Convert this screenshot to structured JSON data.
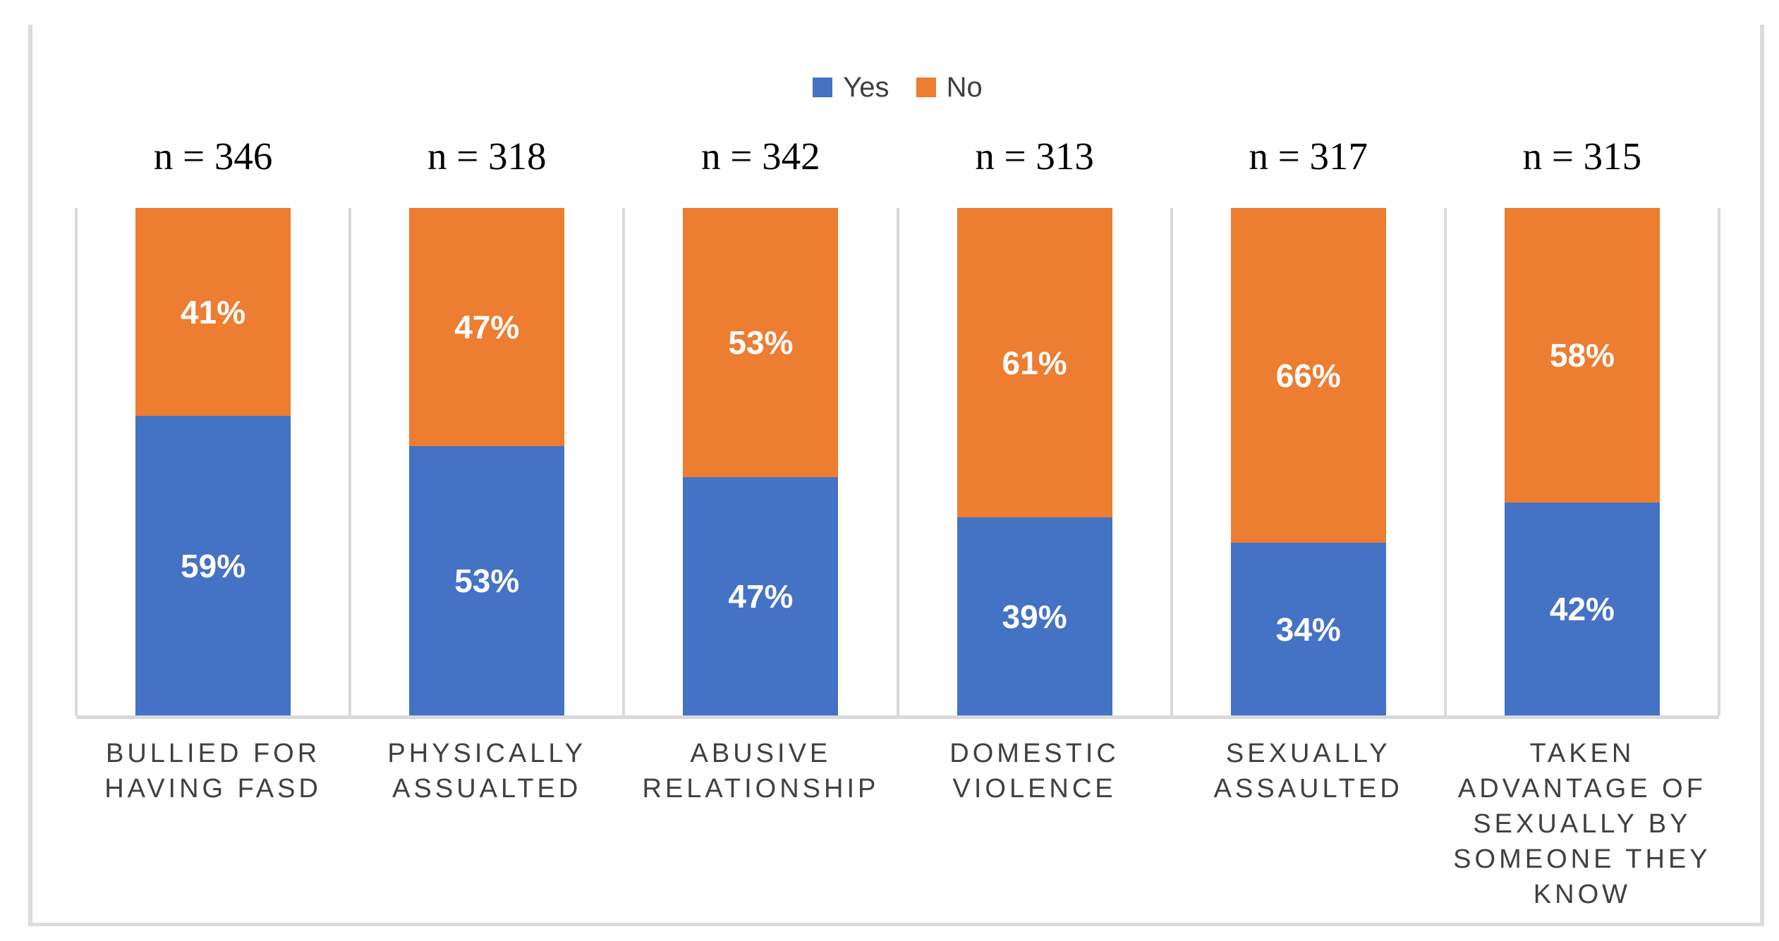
{
  "figure": {
    "background": "#FFFFFF",
    "border_color": "#DCDCDC"
  },
  "legend": {
    "items": [
      {
        "label": "Yes",
        "color": "#4472C4"
      },
      {
        "label": "No",
        "color": "#ED7D31"
      }
    ]
  },
  "chart_data": {
    "type": "bar",
    "subtype": "100%-stacked-column",
    "title": "",
    "legend_position": "top",
    "ylim": [
      0,
      100
    ],
    "gridlines": "vertical-category-dividers",
    "axis_color": "#D9D9D9",
    "value_label_color": "#FFFFFF",
    "category_label_color": "#404040",
    "sample_label_color": "#000000",
    "categories": [
      "BULLIED FOR HAVING FASD",
      "PHYSICALLY ASSUALTED",
      "ABUSIVE RELATIONSHIP",
      "DOMESTIC VIOLENCE",
      "SEXUALLY ASSAULTED",
      "TAKEN ADVANTAGE OF SEXUALLY BY SOMEONE THEY KNOW"
    ],
    "sample_sizes": [
      "n = 346",
      "n = 318",
      "n = 342",
      "n = 313",
      "n = 317",
      "n = 315"
    ],
    "series": [
      {
        "name": "Yes",
        "color": "#4472C4",
        "values": [
          59,
          53,
          47,
          39,
          34,
          42
        ],
        "labels": [
          "59%",
          "53%",
          "47%",
          "39%",
          "34%",
          "42%"
        ]
      },
      {
        "name": "No",
        "color": "#ED7D31",
        "values": [
          41,
          47,
          53,
          61,
          66,
          58
        ],
        "labels": [
          "41%",
          "47%",
          "53%",
          "61%",
          "66%",
          "58%"
        ]
      }
    ]
  }
}
